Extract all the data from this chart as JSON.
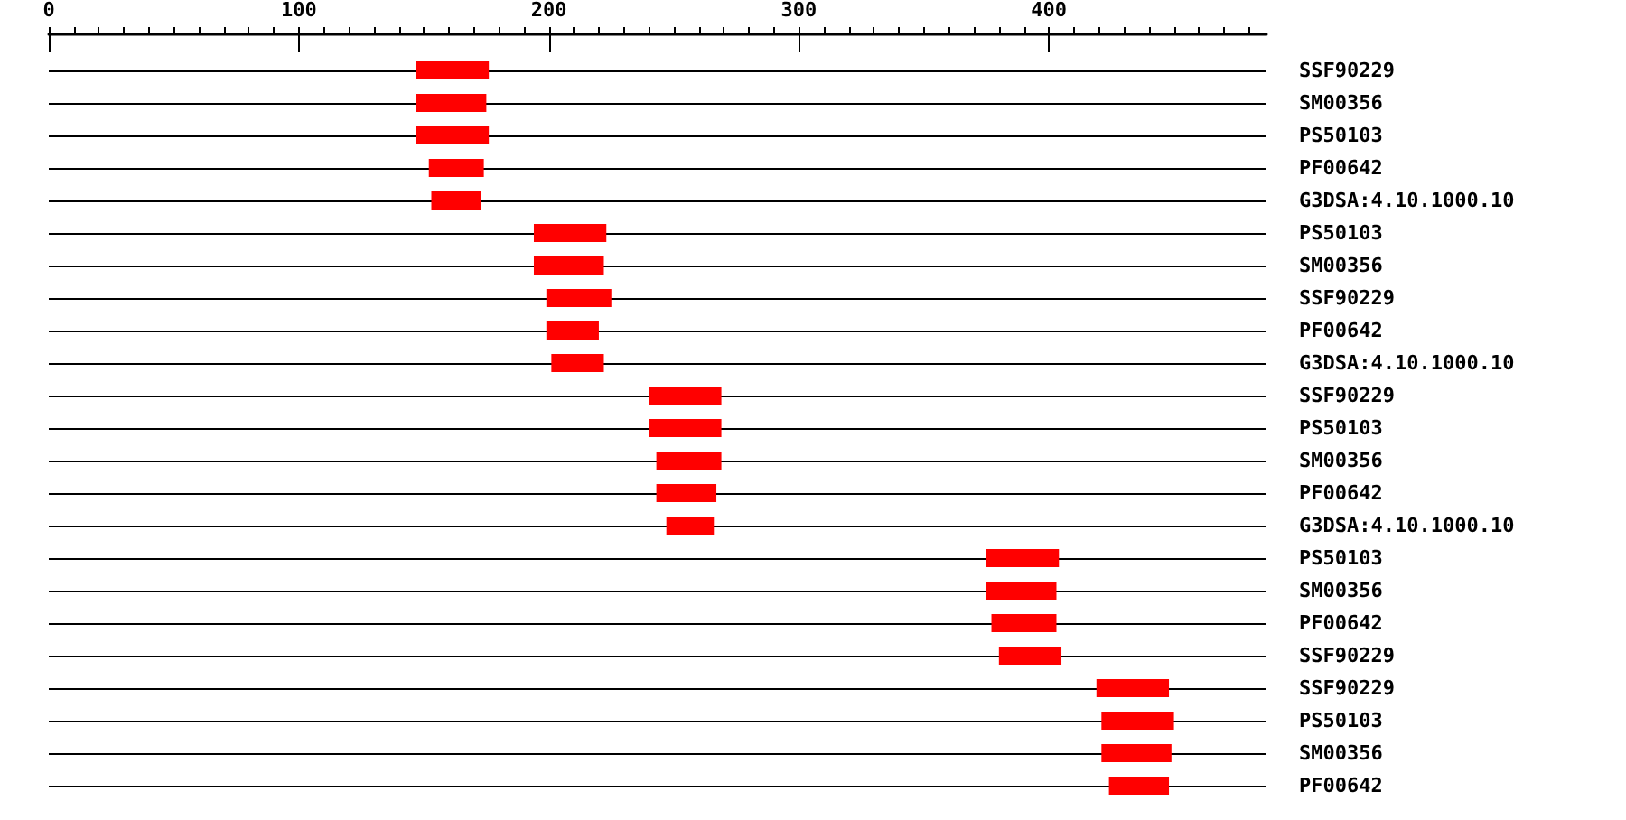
{
  "chart_data": {
    "type": "bar",
    "orientation": "horizontal",
    "categories": [
      "SSF90229",
      "SM00356",
      "PS50103",
      "PF00642",
      "G3DSA:4.10.1000.10",
      "PS50103",
      "SM00356",
      "SSF90229",
      "PF00642",
      "G3DSA:4.10.1000.10",
      "SSF90229",
      "PS50103",
      "SM00356",
      "PF00642",
      "G3DSA:4.10.1000.10",
      "PS50103",
      "SM00356",
      "PF00642",
      "SSF90229",
      "SSF90229",
      "PS50103",
      "SM00356",
      "PF00642"
    ],
    "base": [
      147,
      147,
      147,
      152,
      153,
      194,
      194,
      199,
      199,
      201,
      240,
      240,
      243,
      243,
      247,
      375,
      375,
      377,
      380,
      419,
      421,
      421,
      424
    ],
    "values": [
      29,
      28,
      29,
      22,
      20,
      29,
      28,
      26,
      21,
      21,
      29,
      29,
      26,
      24,
      19,
      29,
      28,
      26,
      25,
      29,
      29,
      28,
      24
    ],
    "color": "#ff0000",
    "xlim": [
      0,
      487
    ],
    "xticks": [
      0,
      {
        "value": 10,
        "label": null
      },
      {
        "value": 20,
        "label": null
      },
      {
        "value": 30,
        "label": null
      },
      {
        "value": 40,
        "label": null
      },
      {
        "value": 50,
        "label": null
      },
      {
        "value": 60,
        "label": null
      },
      {
        "value": 70,
        "label": null
      },
      {
        "value": 80,
        "label": null
      },
      {
        "value": 90,
        "label": null
      },
      100,
      {
        "value": 110,
        "label": null
      },
      {
        "value": 120,
        "label": null
      },
      {
        "value": 130,
        "label": null
      },
      {
        "value": 140,
        "label": null
      },
      {
        "value": 150,
        "label": null
      },
      {
        "value": 160,
        "label": null
      },
      {
        "value": 170,
        "label": null
      },
      {
        "value": 180,
        "label": null
      },
      {
        "value": 190,
        "label": null
      },
      200,
      {
        "value": 210,
        "label": null
      },
      {
        "value": 220,
        "label": null
      },
      {
        "value": 230,
        "label": null
      },
      {
        "value": 240,
        "label": null
      },
      {
        "value": 250,
        "label": null
      },
      {
        "value": 260,
        "label": null
      },
      {
        "value": 270,
        "label": null
      },
      {
        "value": 280,
        "label": null
      },
      {
        "value": 290,
        "label": null
      },
      300,
      {
        "value": 310,
        "label": null
      },
      {
        "value": 320,
        "label": null
      },
      {
        "value": 330,
        "label": null
      },
      {
        "value": 340,
        "label": null
      },
      {
        "value": 350,
        "label": null
      },
      {
        "value": 360,
        "label": null
      },
      {
        "value": 370,
        "label": null
      },
      {
        "value": 380,
        "label": null
      },
      {
        "value": 390,
        "label": null
      },
      400,
      {
        "value": 410,
        "label": null
      },
      {
        "value": 420,
        "label": null
      },
      {
        "value": 430,
        "label": null
      },
      {
        "value": 440,
        "label": null
      },
      {
        "value": 450,
        "label": null
      },
      {
        "value": 460,
        "label": null
      },
      {
        "value": 470,
        "label": null
      },
      {
        "value": 480,
        "label": null
      }
    ],
    "grid": "y"
  }
}
